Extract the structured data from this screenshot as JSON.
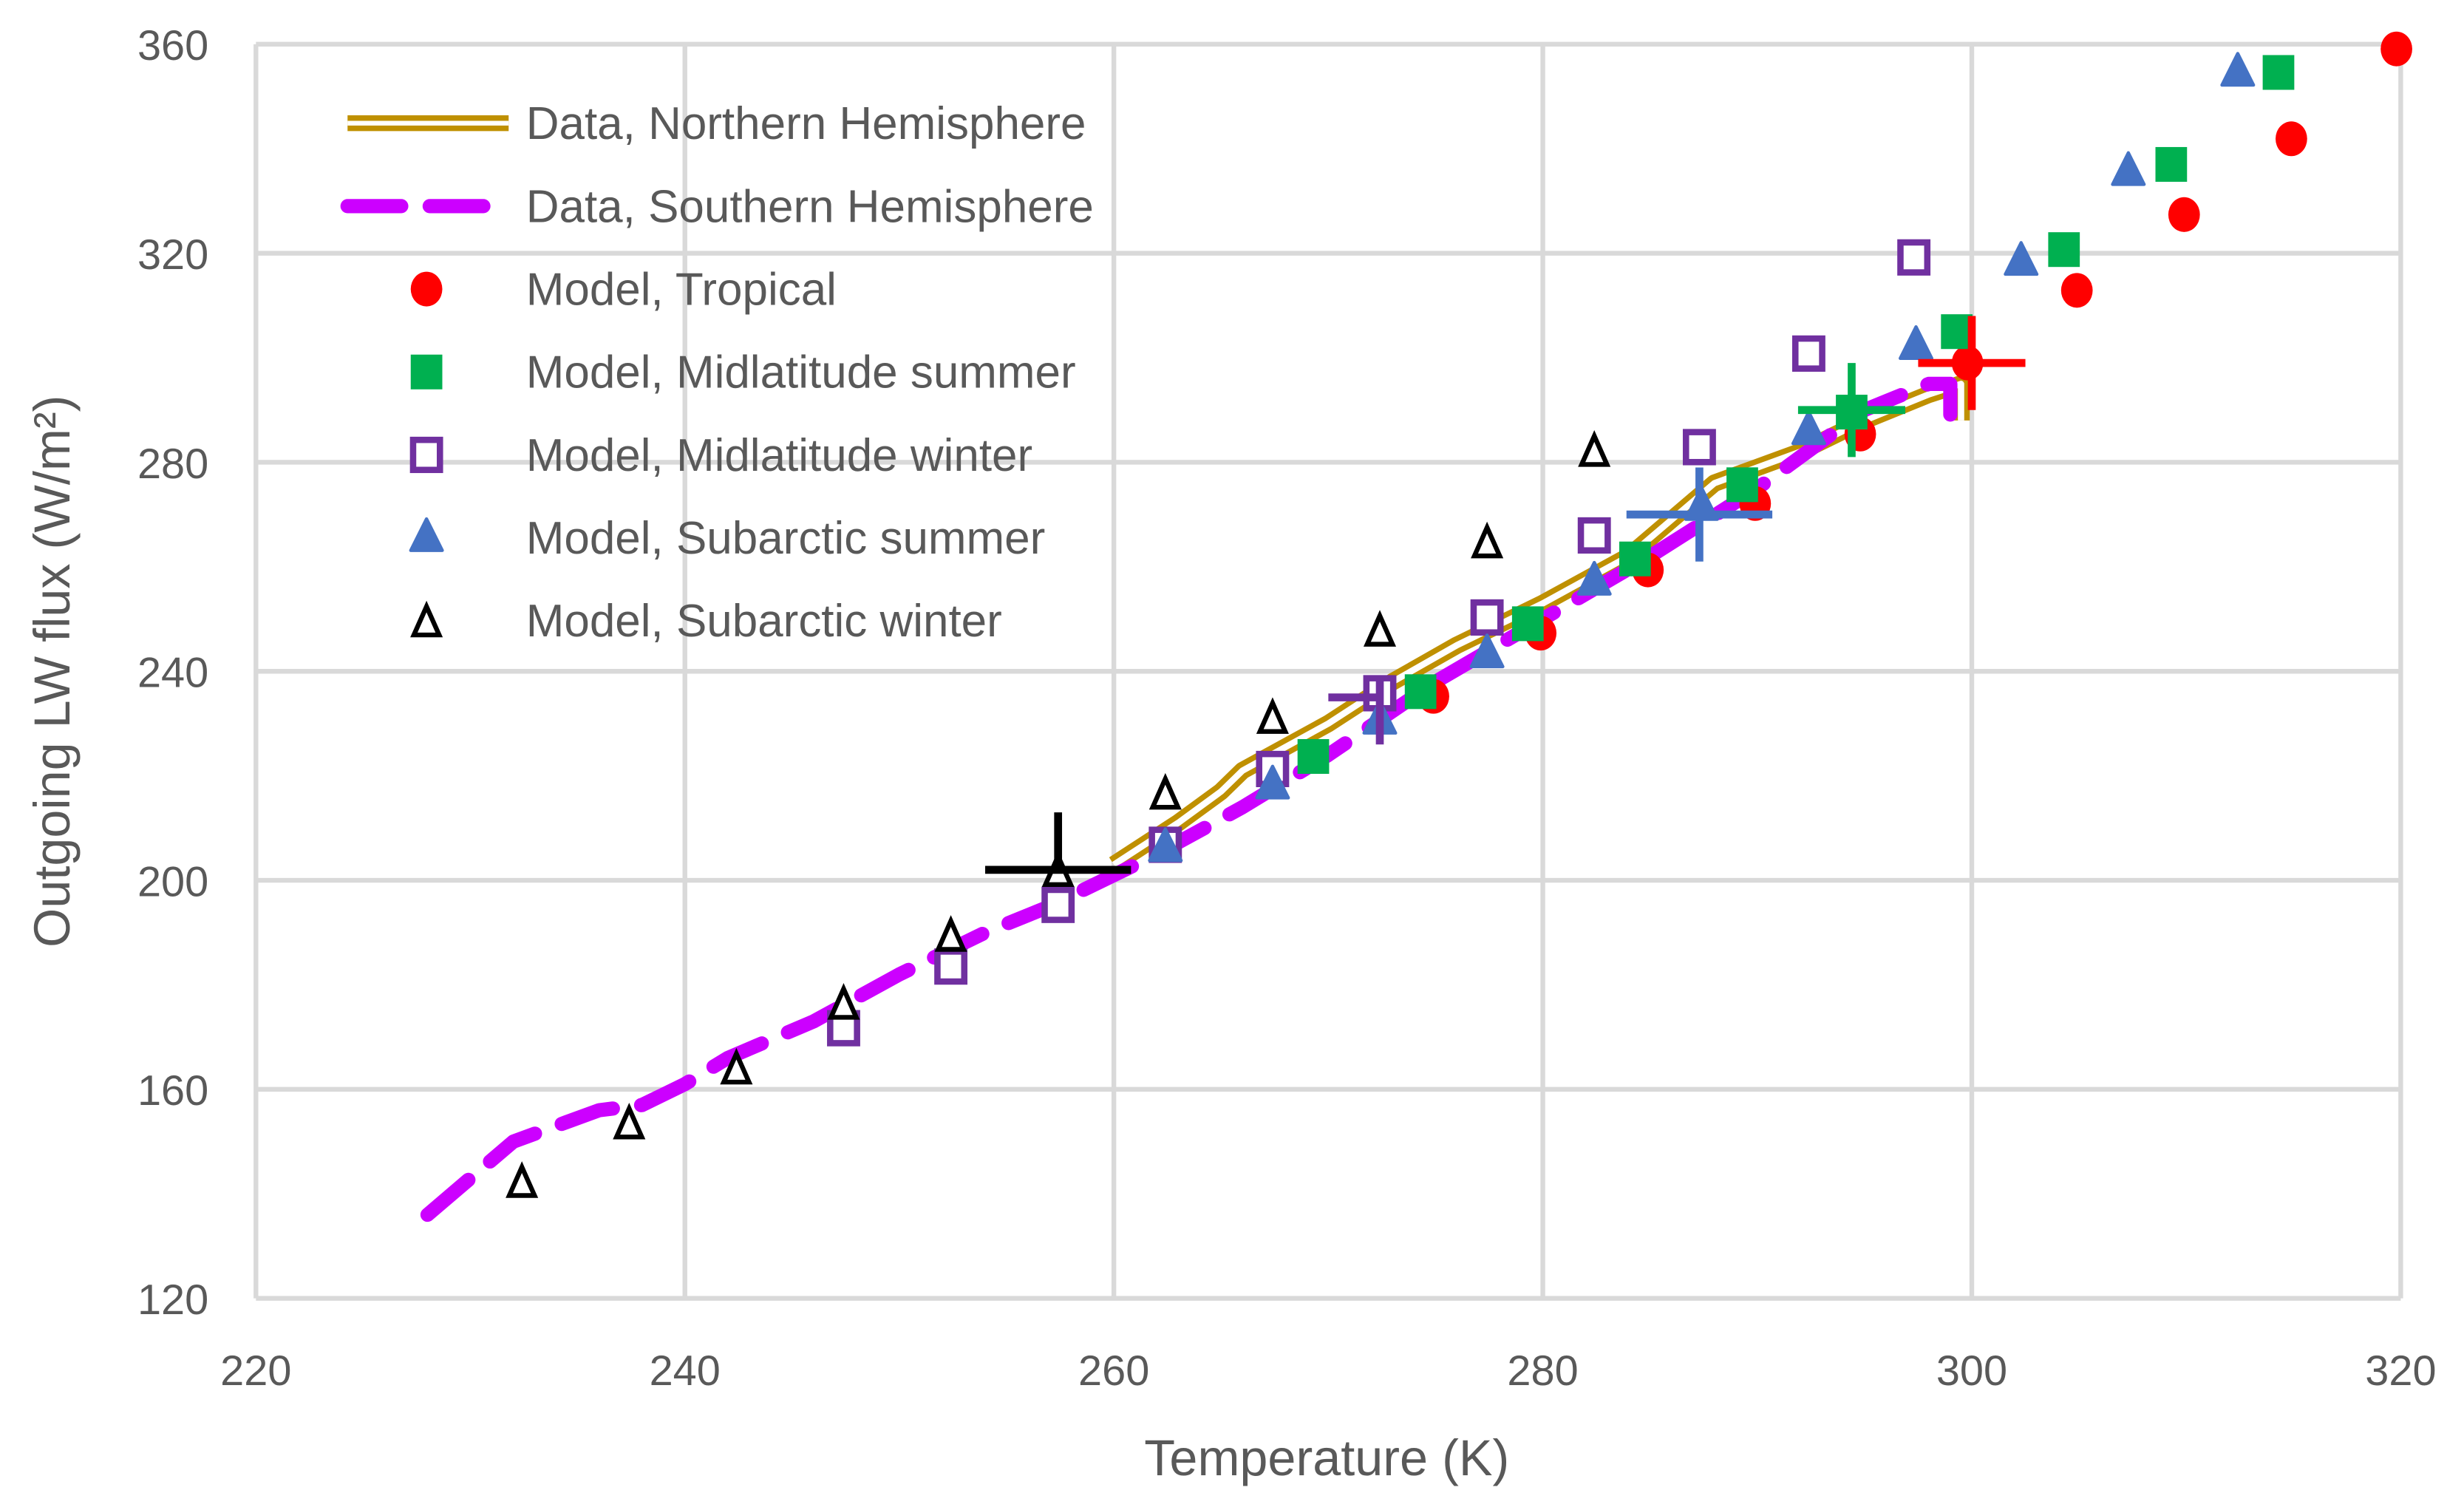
{
  "chart_data": {
    "type": "scatter",
    "xlabel": "Temperature (K)",
    "ylabel": "Outgoing LW flux (W/m²)",
    "xlim": [
      220,
      320
    ],
    "ylim": [
      120,
      360
    ],
    "xticks": [
      "220",
      "240",
      "260",
      "280",
      "300",
      "320"
    ],
    "yticks": [
      "120",
      "160",
      "200",
      "240",
      "280",
      "320",
      "360"
    ],
    "grid": true,
    "legend_position": "top-left",
    "series": [
      {
        "name": "Data, Northern Hemisphere",
        "kind": "double-line",
        "color": "#BF9000",
        "x": [
          260,
          263,
          265,
          266,
          270,
          273,
          276,
          280,
          284,
          286,
          288,
          292,
          295,
          298,
          299.5,
          299.5
        ],
        "y": [
          203,
          211,
          217,
          221,
          230,
          238,
          245,
          253,
          262,
          269,
          276,
          282,
          288,
          293,
          295,
          288
        ]
      },
      {
        "name": "Data, Southern Hemisphere",
        "kind": "dashed-line",
        "color": "#CC00FF",
        "x": [
          228,
          232,
          236,
          238,
          240,
          242,
          246,
          250,
          254,
          257,
          262,
          266,
          270,
          275,
          280,
          285,
          290,
          295,
          298,
          299,
          299
        ],
        "y": [
          136,
          150,
          156,
          157,
          161,
          166,
          173,
          182,
          190,
          195,
          205,
          214,
          224,
          238,
          250,
          262,
          275,
          290,
          295,
          295,
          288
        ]
      },
      {
        "name": "Model, Tropical",
        "kind": "circle",
        "color": "#FF0000",
        "x": [
          274.9,
          279.9,
          284.9,
          289.9,
          294.8,
          299.8,
          304.9,
          309.9,
          314.9,
          319.8
        ],
        "y": [
          235.2,
          247.3,
          259.4,
          272.1,
          285.4,
          299.0,
          312.9,
          327.4,
          341.9,
          359.1
        ]
      },
      {
        "name": "Model, Midlatitude summer",
        "kind": "square",
        "color": "#00B050",
        "x": [
          269.3,
          274.3,
          279.3,
          284.3,
          289.3,
          294.4,
          299.3,
          304.3,
          309.3,
          314.3
        ],
        "y": [
          223.7,
          236.1,
          249.1,
          261.5,
          275.7,
          289.6,
          305.0,
          320.7,
          337.0,
          354.6
        ]
      },
      {
        "name": "Model, Midlatitude winter",
        "kind": "open-square",
        "color": "#7030A0",
        "x": [
          247.4,
          252.4,
          257.4,
          262.4,
          267.4,
          272.4,
          277.4,
          282.4,
          287.3,
          292.4,
          297.3
        ],
        "y": [
          171.7,
          183.5,
          195.3,
          206.8,
          221.3,
          235.8,
          250.3,
          266.0,
          282.9,
          300.8,
          319.2
        ]
      },
      {
        "name": "Model, Subarctic summer",
        "kind": "triangle",
        "color": "#4472C4",
        "x": [
          262.4,
          267.4,
          272.4,
          277.4,
          282.4,
          287.4,
          292.4,
          297.4,
          302.3,
          307.3,
          312.4
        ],
        "y": [
          206.2,
          218.2,
          230.6,
          243.3,
          257.2,
          271.5,
          286.0,
          302.3,
          318.4,
          335.6,
          354.6
        ]
      },
      {
        "name": "Model, Subarctic winter",
        "kind": "open-triangle",
        "color": "#000000",
        "x": [
          232.4,
          237.4,
          242.4,
          247.4,
          252.4,
          257.4,
          262.4,
          267.4,
          272.4,
          277.4,
          282.4
        ],
        "y": [
          142.4,
          153.6,
          164.1,
          176.5,
          189.5,
          201.9,
          216.7,
          231.2,
          247.9,
          264.8,
          282.3
        ]
      }
    ],
    "error_crosses": [
      {
        "color": "#000000",
        "x": 257.4,
        "y": 202,
        "xerr": [
          3.4,
          3.4
        ],
        "yerr": [
          0,
          11
        ]
      },
      {
        "color": "#7030A0",
        "x": 272.4,
        "y": 235,
        "xerr": [
          2.4,
          0
        ],
        "yerr": [
          9,
          4
        ]
      },
      {
        "color": "#4472C4",
        "x": 287.3,
        "y": 270,
        "xerr": [
          3.4,
          3.4
        ],
        "yerr": [
          9,
          9
        ]
      },
      {
        "color": "#00B050",
        "x": 294.4,
        "y": 290,
        "xerr": [
          2.5,
          2.5
        ],
        "yerr": [
          9,
          9
        ]
      },
      {
        "color": "#FF0000",
        "x": 300,
        "y": 299,
        "xerr": [
          2.5,
          2.5
        ],
        "yerr": [
          9,
          9
        ]
      }
    ]
  }
}
